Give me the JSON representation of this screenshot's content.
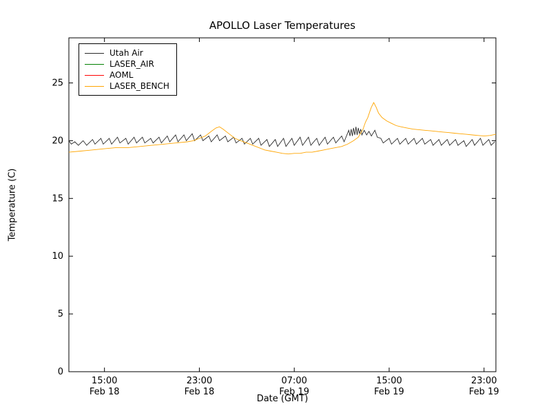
{
  "chart_data": {
    "type": "line",
    "title": "APOLLO Laser Temperatures",
    "xlabel": "Date (GMT)",
    "ylabel": "Temperature (C)",
    "xlim": [
      12,
      48
    ],
    "ylim": [
      0,
      28.9
    ],
    "grid": false,
    "legend_position": "upper left",
    "x_unit": "hours from Feb 18 00:00 GMT",
    "xticks": [
      {
        "pos": 15,
        "time": "15:00",
        "date": "Feb 18"
      },
      {
        "pos": 23,
        "time": "23:00",
        "date": "Feb 18"
      },
      {
        "pos": 31,
        "time": "07:00",
        "date": "Feb 19"
      },
      {
        "pos": 39,
        "time": "15:00",
        "date": "Feb 19"
      },
      {
        "pos": 47,
        "time": "23:00",
        "date": "Feb 19"
      }
    ],
    "yticks": [
      0,
      5,
      10,
      15,
      20,
      25
    ],
    "series": [
      {
        "name": "Utah Air",
        "color": "#2a2a2a",
        "points": [
          [
            12.0,
            20.0
          ],
          [
            12.2,
            19.7
          ],
          [
            12.5,
            19.9
          ],
          [
            12.8,
            19.6
          ],
          [
            13.2,
            20.0
          ],
          [
            13.5,
            19.6
          ],
          [
            14.0,
            20.1
          ],
          [
            14.2,
            19.7
          ],
          [
            14.7,
            20.2
          ],
          [
            14.9,
            19.7
          ],
          [
            15.4,
            20.2
          ],
          [
            15.6,
            19.7
          ],
          [
            16.1,
            20.3
          ],
          [
            16.3,
            19.8
          ],
          [
            16.8,
            20.2
          ],
          [
            17.0,
            19.7
          ],
          [
            17.5,
            20.3
          ],
          [
            17.7,
            19.8
          ],
          [
            18.2,
            20.3
          ],
          [
            18.4,
            19.8
          ],
          [
            18.9,
            20.2
          ],
          [
            19.1,
            19.8
          ],
          [
            19.6,
            20.3
          ],
          [
            19.8,
            19.8
          ],
          [
            20.3,
            20.4
          ],
          [
            20.5,
            19.9
          ],
          [
            21.0,
            20.5
          ],
          [
            21.2,
            19.9
          ],
          [
            21.7,
            20.5
          ],
          [
            21.9,
            20.0
          ],
          [
            22.4,
            20.6
          ],
          [
            22.6,
            20.0
          ],
          [
            23.1,
            20.5
          ],
          [
            23.3,
            20.0
          ],
          [
            23.8,
            20.4
          ],
          [
            24.0,
            19.9
          ],
          [
            24.5,
            20.5
          ],
          [
            24.7,
            20.0
          ],
          [
            25.2,
            20.4
          ],
          [
            25.4,
            19.9
          ],
          [
            25.9,
            20.3
          ],
          [
            26.1,
            19.8
          ],
          [
            26.6,
            20.2
          ],
          [
            26.8,
            19.7
          ],
          [
            27.3,
            20.2
          ],
          [
            27.5,
            19.7
          ],
          [
            28.0,
            20.2
          ],
          [
            28.2,
            19.6
          ],
          [
            28.7,
            20.1
          ],
          [
            28.9,
            19.5
          ],
          [
            29.4,
            20.1
          ],
          [
            29.6,
            19.5
          ],
          [
            30.1,
            20.2
          ],
          [
            30.3,
            19.5
          ],
          [
            30.8,
            20.2
          ],
          [
            31.0,
            19.6
          ],
          [
            31.5,
            20.3
          ],
          [
            31.7,
            19.6
          ],
          [
            32.2,
            20.3
          ],
          [
            32.4,
            19.6
          ],
          [
            32.9,
            20.2
          ],
          [
            33.1,
            19.6
          ],
          [
            33.6,
            20.3
          ],
          [
            33.8,
            19.7
          ],
          [
            34.3,
            20.3
          ],
          [
            34.5,
            19.8
          ],
          [
            35.0,
            20.4
          ],
          [
            35.2,
            19.9
          ],
          [
            35.6,
            20.9
          ],
          [
            35.7,
            20.4
          ],
          [
            35.8,
            21.0
          ],
          [
            35.9,
            20.4
          ],
          [
            36.0,
            21.1
          ],
          [
            36.1,
            20.5
          ],
          [
            36.2,
            21.2
          ],
          [
            36.3,
            20.5
          ],
          [
            36.4,
            21.1
          ],
          [
            36.5,
            20.6
          ],
          [
            36.6,
            21.0
          ],
          [
            36.7,
            20.5
          ],
          [
            36.9,
            20.9
          ],
          [
            37.1,
            20.5
          ],
          [
            37.3,
            20.8
          ],
          [
            37.5,
            20.4
          ],
          [
            37.8,
            20.9
          ],
          [
            38.0,
            20.3
          ],
          [
            38.3,
            20.2
          ],
          [
            38.5,
            19.8
          ],
          [
            39.0,
            20.2
          ],
          [
            39.2,
            19.7
          ],
          [
            39.7,
            20.2
          ],
          [
            39.9,
            19.7
          ],
          [
            40.4,
            20.2
          ],
          [
            40.6,
            19.7
          ],
          [
            41.1,
            20.2
          ],
          [
            41.3,
            19.7
          ],
          [
            41.8,
            20.2
          ],
          [
            42.0,
            19.7
          ],
          [
            42.5,
            20.1
          ],
          [
            42.7,
            19.6
          ],
          [
            43.2,
            20.1
          ],
          [
            43.4,
            19.6
          ],
          [
            43.9,
            20.1
          ],
          [
            44.1,
            19.6
          ],
          [
            44.6,
            20.1
          ],
          [
            44.8,
            19.6
          ],
          [
            45.3,
            20.0
          ],
          [
            45.5,
            19.5
          ],
          [
            46.0,
            20.1
          ],
          [
            46.2,
            19.6
          ],
          [
            46.7,
            20.2
          ],
          [
            46.9,
            19.6
          ],
          [
            47.4,
            20.1
          ],
          [
            47.6,
            19.6
          ],
          [
            47.9,
            19.9
          ]
        ]
      },
      {
        "name": "LASER_AIR",
        "color": "#007f00",
        "points": []
      },
      {
        "name": "AOML",
        "color": "#ff0000",
        "points": []
      },
      {
        "name": "LASER_BENCH",
        "color": "#ffa500",
        "points": [
          [
            12.0,
            19.0
          ],
          [
            13.0,
            19.1
          ],
          [
            14.0,
            19.2
          ],
          [
            15.0,
            19.3
          ],
          [
            16.0,
            19.4
          ],
          [
            17.0,
            19.4
          ],
          [
            18.0,
            19.5
          ],
          [
            19.0,
            19.6
          ],
          [
            20.0,
            19.7
          ],
          [
            21.0,
            19.8
          ],
          [
            22.0,
            19.9
          ],
          [
            22.5,
            20.0
          ],
          [
            23.0,
            20.2
          ],
          [
            23.5,
            20.4
          ],
          [
            24.0,
            20.8
          ],
          [
            24.4,
            21.1
          ],
          [
            24.7,
            21.2
          ],
          [
            25.0,
            21.0
          ],
          [
            25.5,
            20.6
          ],
          [
            26.0,
            20.2
          ],
          [
            26.5,
            20.0
          ],
          [
            27.0,
            19.8
          ],
          [
            27.5,
            19.6
          ],
          [
            28.0,
            19.4
          ],
          [
            28.5,
            19.2
          ],
          [
            29.0,
            19.1
          ],
          [
            29.5,
            19.0
          ],
          [
            30.0,
            18.9
          ],
          [
            30.5,
            18.85
          ],
          [
            31.0,
            18.9
          ],
          [
            31.5,
            18.9
          ],
          [
            32.0,
            19.0
          ],
          [
            32.5,
            19.0
          ],
          [
            33.0,
            19.1
          ],
          [
            33.5,
            19.2
          ],
          [
            34.0,
            19.3
          ],
          [
            34.5,
            19.4
          ],
          [
            35.0,
            19.5
          ],
          [
            35.5,
            19.7
          ],
          [
            36.0,
            20.0
          ],
          [
            36.4,
            20.3
          ],
          [
            36.8,
            21.0
          ],
          [
            37.0,
            21.6
          ],
          [
            37.2,
            22.0
          ],
          [
            37.4,
            22.6
          ],
          [
            37.5,
            22.9
          ],
          [
            37.7,
            23.3
          ],
          [
            37.9,
            22.9
          ],
          [
            38.1,
            22.4
          ],
          [
            38.4,
            22.0
          ],
          [
            38.8,
            21.7
          ],
          [
            39.2,
            21.5
          ],
          [
            39.6,
            21.3
          ],
          [
            40.0,
            21.2
          ],
          [
            40.5,
            21.1
          ],
          [
            41.0,
            21.0
          ],
          [
            41.5,
            20.95
          ],
          [
            42.0,
            20.9
          ],
          [
            42.5,
            20.85
          ],
          [
            43.0,
            20.8
          ],
          [
            43.5,
            20.75
          ],
          [
            44.0,
            20.7
          ],
          [
            44.5,
            20.65
          ],
          [
            45.0,
            20.6
          ],
          [
            45.5,
            20.55
          ],
          [
            46.0,
            20.5
          ],
          [
            46.5,
            20.45
          ],
          [
            47.0,
            20.4
          ],
          [
            47.5,
            20.45
          ],
          [
            48.0,
            20.55
          ]
        ]
      }
    ]
  }
}
